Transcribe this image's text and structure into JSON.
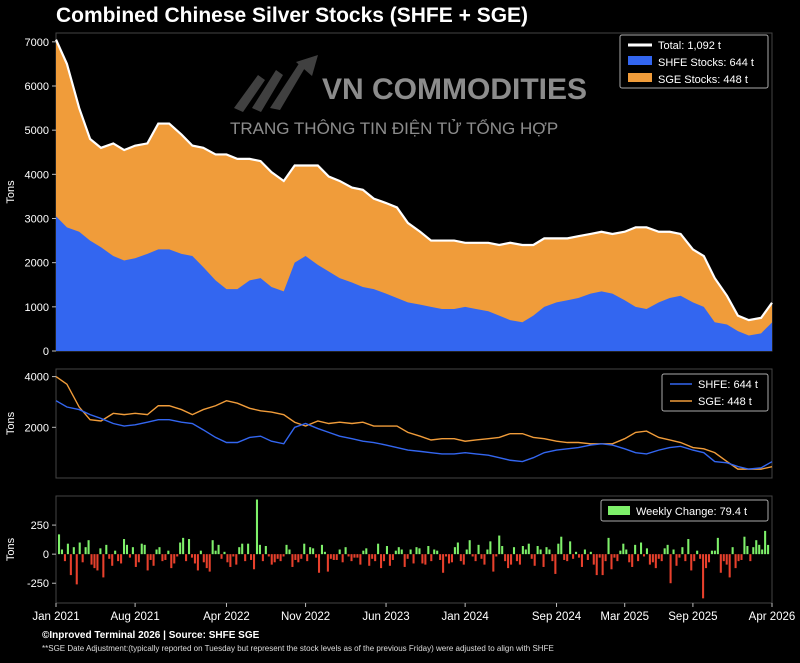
{
  "title": "Combined Chinese Silver Stocks (SHFE + SGE)",
  "watermark": {
    "brand": "VN COMMODITIES",
    "tagline": "TRANG THÔNG TIN ĐIỆN TỬ TỔNG HỢP"
  },
  "footer": {
    "source": "©Inproved Terminal 2026 | Source: SHFE SGE",
    "note": "**SGE Date Adjustment:(typically reported on Tuesday but represent the stock levels as of the previous Friday) were adjusted to align with SHFE"
  },
  "colors": {
    "shfe": "#3366f0",
    "sge": "#f09c3a",
    "total": "#ffffff",
    "positive": "#7ef06a",
    "negative": "#e8402c",
    "axis": "#888888"
  },
  "chart_data": [
    {
      "type": "area",
      "stacked": true,
      "ylabel": "Tons",
      "ylim": [
        0,
        7200
      ],
      "yticks": [
        0,
        1000,
        2000,
        3000,
        4000,
        5000,
        6000,
        7000
      ],
      "x_range": [
        2021.0,
        2026.25
      ],
      "legend": {
        "placement": "top-right",
        "entries": [
          "Total: 1,092 t",
          "SHFE Stocks: 644 t",
          "SGE Stocks: 448 t"
        ]
      },
      "x": [
        2021.0,
        2021.08,
        2021.17,
        2021.25,
        2021.33,
        2021.42,
        2021.5,
        2021.58,
        2021.67,
        2021.75,
        2021.83,
        2021.92,
        2022.0,
        2022.08,
        2022.17,
        2022.25,
        2022.33,
        2022.42,
        2022.5,
        2022.58,
        2022.67,
        2022.75,
        2022.83,
        2022.92,
        2023.0,
        2023.08,
        2023.17,
        2023.25,
        2023.33,
        2023.42,
        2023.5,
        2023.58,
        2023.67,
        2023.75,
        2023.83,
        2023.92,
        2024.0,
        2024.08,
        2024.17,
        2024.25,
        2024.33,
        2024.42,
        2024.5,
        2024.58,
        2024.67,
        2024.75,
        2024.83,
        2024.92,
        2025.0,
        2025.08,
        2025.17,
        2025.25,
        2025.33,
        2025.42,
        2025.5,
        2025.58,
        2025.67,
        2025.75,
        2025.83,
        2025.92,
        2026.0,
        2026.08,
        2026.17,
        2026.25
      ],
      "series": [
        {
          "name": "SHFE Stocks",
          "values": [
            3050,
            2800,
            2700,
            2500,
            2350,
            2150,
            2050,
            2100,
            2200,
            2300,
            2300,
            2200,
            2150,
            1900,
            1600,
            1400,
            1400,
            1600,
            1650,
            1450,
            1350,
            2000,
            2150,
            1950,
            1800,
            1650,
            1550,
            1450,
            1400,
            1300,
            1200,
            1100,
            1050,
            1000,
            950,
            950,
            1000,
            950,
            900,
            800,
            700,
            650,
            800,
            1000,
            1100,
            1150,
            1200,
            1300,
            1350,
            1300,
            1150,
            1000,
            950,
            1100,
            1200,
            1250,
            1100,
            1000,
            650,
            600,
            450,
            350,
            400,
            644
          ]
        },
        {
          "name": "SGE Stocks",
          "values": [
            4000,
            3700,
            2800,
            2300,
            2250,
            2550,
            2500,
            2550,
            2500,
            2850,
            2850,
            2700,
            2500,
            2700,
            2850,
            3050,
            2950,
            2750,
            2650,
            2600,
            2500,
            2200,
            2050,
            2250,
            2150,
            2200,
            2150,
            2200,
            2050,
            2050,
            2050,
            1800,
            1650,
            1500,
            1550,
            1550,
            1450,
            1500,
            1550,
            1600,
            1750,
            1750,
            1600,
            1550,
            1450,
            1400,
            1400,
            1350,
            1350,
            1350,
            1550,
            1800,
            1850,
            1600,
            1500,
            1400,
            1200,
            1150,
            1000,
            650,
            350,
            350,
            350,
            448
          ]
        }
      ]
    },
    {
      "type": "line",
      "ylabel": "Tons",
      "ylim": [
        0,
        4300
      ],
      "yticks": [
        2000,
        4000
      ],
      "legend": {
        "placement": "top-right",
        "entries": [
          "SHFE: 644 t",
          "SGE: 448 t"
        ]
      },
      "series_ref": [
        "SHFE Stocks",
        "SGE Stocks"
      ]
    },
    {
      "type": "bar",
      "ylabel": "Tons",
      "ylim": [
        -420,
        500
      ],
      "yticks": [
        -250,
        0,
        250
      ],
      "legend": {
        "placement": "top-right",
        "entries": [
          "Weekly Change: 79.4 t"
        ]
      },
      "x_tick_labels": [
        "Jan 2021",
        "Aug 2021",
        "Apr 2022",
        "Nov 2022",
        "Jun 2023",
        "Jan 2024",
        "Sep 2024",
        "Mar 2025",
        "Sep 2025",
        "Apr 2026"
      ],
      "x_tick_positions": [
        2021.0,
        2021.58,
        2022.25,
        2022.83,
        2023.42,
        2024.0,
        2024.67,
        2025.17,
        2025.67,
        2026.25
      ],
      "values": [
        170,
        40,
        -60,
        90,
        -180,
        60,
        -260,
        100,
        -70,
        60,
        120,
        -90,
        -120,
        -140,
        50,
        -200,
        80,
        -40,
        -100,
        30,
        -60,
        -80,
        130,
        80,
        -30,
        60,
        -110,
        -70,
        90,
        80,
        -140,
        -50,
        -100,
        40,
        60,
        -60,
        -50,
        30,
        -120,
        -80,
        -20,
        100,
        140,
        -60,
        130,
        -30,
        -80,
        -140,
        30,
        -70,
        -120,
        -150,
        120,
        30,
        80,
        -40,
        20,
        -70,
        -110,
        -20,
        -90,
        60,
        90,
        -60,
        90,
        -50,
        -130,
        470,
        80,
        -60,
        70,
        -20,
        -90,
        -70,
        -40,
        -60,
        -20,
        80,
        40,
        -110,
        -50,
        -70,
        -40,
        90,
        -60,
        60,
        50,
        -30,
        -160,
        80,
        20,
        -150,
        -40,
        -50,
        -50,
        40,
        -70,
        60,
        -20,
        -60,
        -30,
        -30,
        -90,
        30,
        50,
        -100,
        -40,
        -60,
        90,
        -120,
        -60,
        70,
        -100,
        -50,
        30,
        60,
        40,
        -110,
        -40,
        40,
        -80,
        60,
        50,
        -80,
        -90,
        70,
        -60,
        40,
        30,
        -50,
        -160,
        -20,
        -80,
        -70,
        60,
        100,
        -60,
        -90,
        40,
        120,
        -20,
        -60,
        80,
        -40,
        -90,
        40,
        110,
        -150,
        -20,
        160,
        70,
        -60,
        -120,
        -90,
        60,
        -60,
        -90,
        70,
        40,
        90,
        -40,
        -100,
        70,
        40,
        -110,
        60,
        40,
        -60,
        -170,
        90,
        150,
        -50,
        -60,
        110,
        -40,
        20,
        -30,
        -110,
        40,
        -50,
        20,
        -90,
        -180,
        -30,
        -180,
        -60,
        140,
        -130,
        -30,
        -60,
        30,
        90,
        40,
        -70,
        -110,
        80,
        -60,
        100,
        -20,
        50,
        -90,
        -70,
        -120,
        -40,
        -60,
        50,
        80,
        -250,
        40,
        -100,
        -30,
        60,
        -60,
        130,
        -140,
        -60,
        30,
        -40,
        -380,
        -120,
        -70,
        30,
        30,
        140,
        -160,
        -60,
        -90,
        -200,
        60,
        -120,
        -60,
        -50,
        150,
        70,
        -60,
        60,
        120,
        80,
        40,
        200,
        79.4
      ]
    }
  ]
}
